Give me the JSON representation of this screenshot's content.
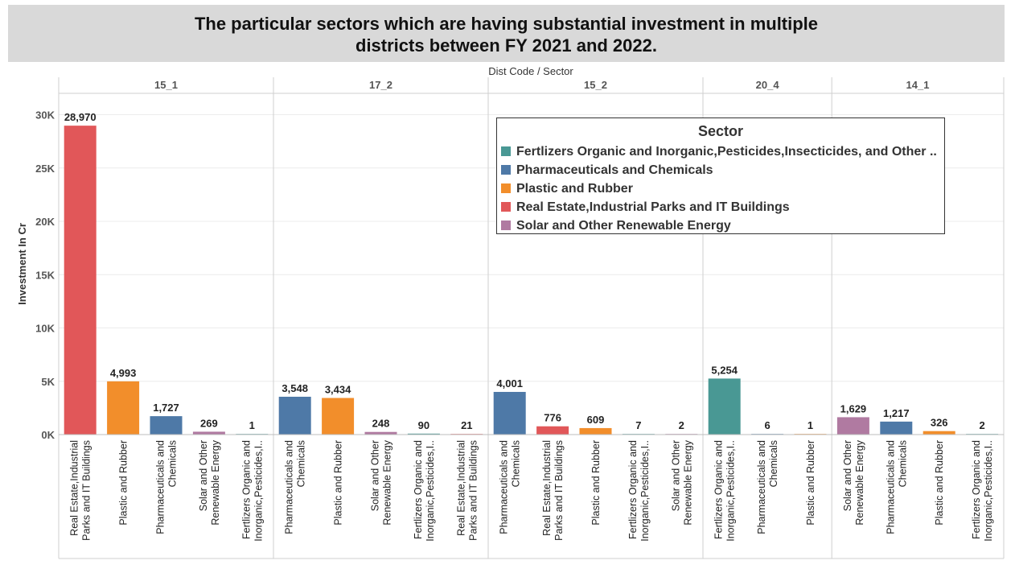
{
  "title": "The particular sectors which are having substantial investment in multiple\ndistricts between FY 2021 and 2022.",
  "header_label": "Dist Code / Sector",
  "legend": {
    "title": "Sector",
    "items": [
      {
        "label": "Fertlizers Organic and Inorganic,Pesticides,Insecticides, and Other ..",
        "color": "#499894"
      },
      {
        "label": "Pharmaceuticals and Chemicals",
        "color": "#4e79a7"
      },
      {
        "label": "Plastic and Rubber",
        "color": "#f28e2b"
      },
      {
        "label": "Real Estate,Industrial Parks and IT Buildings",
        "color": "#e15759"
      },
      {
        "label": "Solar and Other Renewable Energy",
        "color": "#b07aa1"
      }
    ]
  },
  "chart_data": {
    "type": "bar",
    "ylabel": "Investment In Cr",
    "ylim": [
      0,
      32000
    ],
    "yticks": [
      0,
      5000,
      10000,
      15000,
      20000,
      25000,
      30000
    ],
    "ytick_labels": [
      "0K",
      "5K",
      "10K",
      "15K",
      "20K",
      "25K",
      "30K"
    ],
    "grid": true,
    "legend_position": "top-right",
    "groups": [
      {
        "name": "15_1",
        "bars": [
          {
            "sector": "Real Estate,Industrial\nParks and IT Buildings",
            "value": 28970,
            "label": "28,970",
            "color": "#e15759"
          },
          {
            "sector": "Plastic and Rubber",
            "value": 4993,
            "label": "4,993",
            "color": "#f28e2b"
          },
          {
            "sector": "Pharmaceuticals and\nChemicals",
            "value": 1727,
            "label": "1,727",
            "color": "#4e79a7"
          },
          {
            "sector": "Solar and Other\nRenewable Energy",
            "value": 269,
            "label": "269",
            "color": "#b07aa1"
          },
          {
            "sector": "Fertlizers Organic and\nInorganic,Pesticides,I..",
            "value": 1,
            "label": "1",
            "color": "#499894"
          }
        ]
      },
      {
        "name": "17_2",
        "bars": [
          {
            "sector": "Pharmaceuticals and\nChemicals",
            "value": 3548,
            "label": "3,548",
            "color": "#4e79a7"
          },
          {
            "sector": "Plastic and Rubber",
            "value": 3434,
            "label": "3,434",
            "color": "#f28e2b"
          },
          {
            "sector": "Solar and Other\nRenewable Energy",
            "value": 248,
            "label": "248",
            "color": "#b07aa1"
          },
          {
            "sector": "Fertlizers Organic and\nInorganic,Pesticides,I..",
            "value": 90,
            "label": "90",
            "color": "#499894"
          },
          {
            "sector": "Real Estate,Industrial\nParks and IT Buildings",
            "value": 21,
            "label": "21",
            "color": "#e15759"
          }
        ]
      },
      {
        "name": "15_2",
        "bars": [
          {
            "sector": "Pharmaceuticals and\nChemicals",
            "value": 4001,
            "label": "4,001",
            "color": "#4e79a7"
          },
          {
            "sector": "Real Estate,Industrial\nParks and IT Buildings",
            "value": 776,
            "label": "776",
            "color": "#e15759"
          },
          {
            "sector": "Plastic and Rubber",
            "value": 609,
            "label": "609",
            "color": "#f28e2b"
          },
          {
            "sector": "Fertlizers Organic and\nInorganic,Pesticides,I..",
            "value": 7,
            "label": "7",
            "color": "#499894"
          },
          {
            "sector": "Solar and Other\nRenewable Energy",
            "value": 2,
            "label": "2",
            "color": "#b07aa1"
          }
        ]
      },
      {
        "name": "20_4",
        "bars": [
          {
            "sector": "Fertlizers Organic and\nInorganic,Pesticides,I..",
            "value": 5254,
            "label": "5,254",
            "color": "#499894"
          },
          {
            "sector": "Pharmaceuticals and\nChemicals",
            "value": 6,
            "label": "6",
            "color": "#4e79a7"
          },
          {
            "sector": "Plastic and Rubber",
            "value": 1,
            "label": "1",
            "color": "#f28e2b"
          }
        ]
      },
      {
        "name": "14_1",
        "bars": [
          {
            "sector": "Solar and Other\nRenewable Energy",
            "value": 1629,
            "label": "1,629",
            "color": "#b07aa1"
          },
          {
            "sector": "Pharmaceuticals and\nChemicals",
            "value": 1217,
            "label": "1,217",
            "color": "#4e79a7"
          },
          {
            "sector": "Plastic and Rubber",
            "value": 326,
            "label": "326",
            "color": "#f28e2b"
          },
          {
            "sector": "Fertlizers Organic and\nInorganic,Pesticides,I..",
            "value": 2,
            "label": "2",
            "color": "#499894"
          }
        ]
      }
    ]
  }
}
